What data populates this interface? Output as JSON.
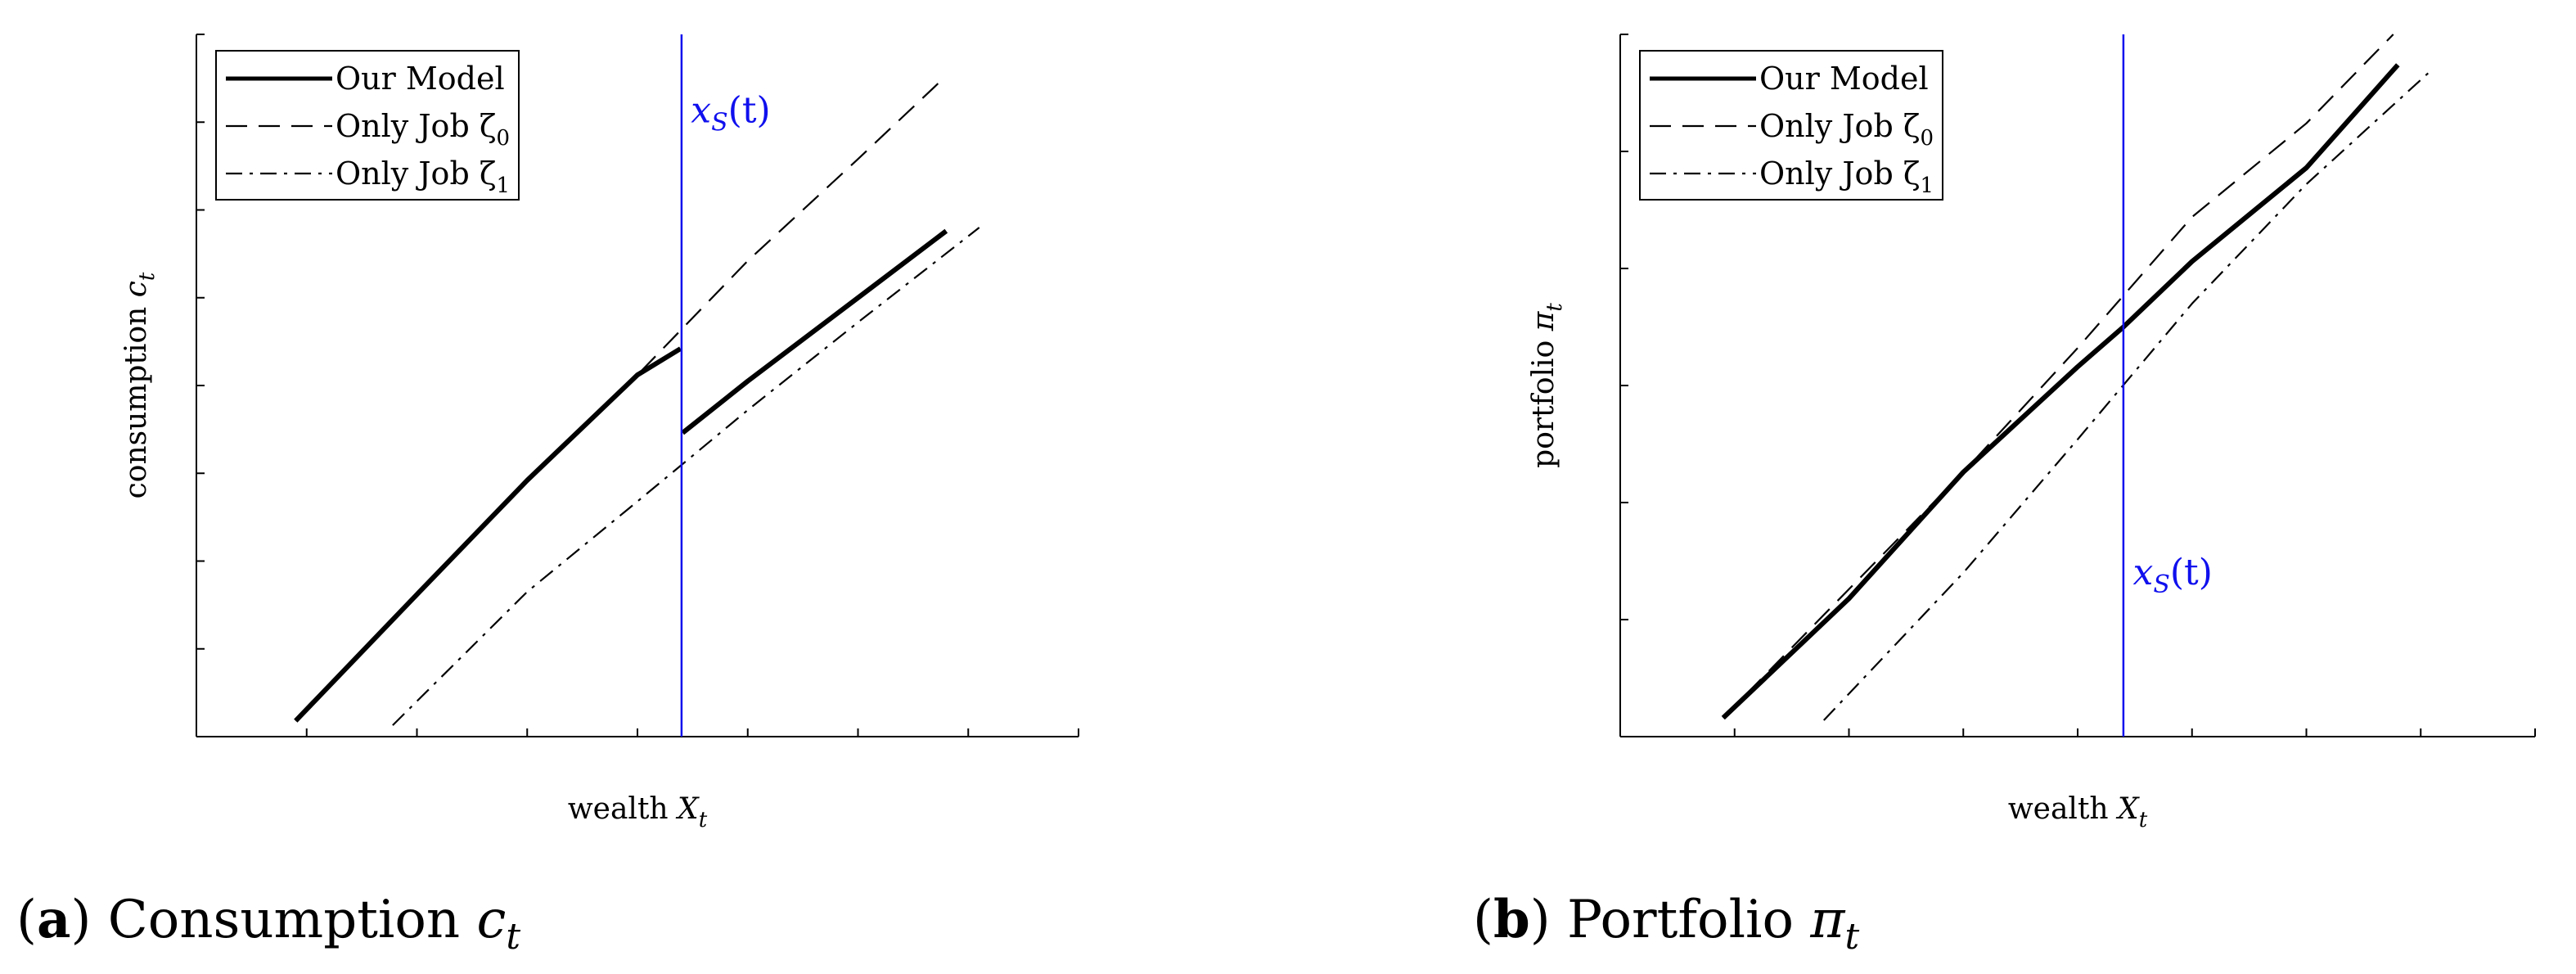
{
  "colors": {
    "background": "#ffffff",
    "axis": "#000000",
    "series": "#000000",
    "threshold": "#1010ee"
  },
  "captions": [
    {
      "letter": "a",
      "text": " Consumption ",
      "symbol": "c",
      "sub": "t"
    },
    {
      "letter": "b",
      "text": " Portfolio ",
      "symbol": "π",
      "sub": "t"
    }
  ],
  "chart_data": [
    {
      "type": "line",
      "xlabel": {
        "text": "wealth ",
        "symbol": "X",
        "sub": "t"
      },
      "ylabel": {
        "text": "consumption ",
        "symbol": "c",
        "sub": "t"
      },
      "xlim": [
        -150,
        250
      ],
      "ylim": [
        0,
        8
      ],
      "xticks": [
        -150,
        -100,
        -50,
        0,
        50,
        100,
        150,
        200,
        250
      ],
      "yticks": [
        0,
        1,
        2,
        3,
        4,
        5,
        6,
        7,
        8
      ],
      "grid": false,
      "legend_position": "top-left",
      "series": [
        {
          "name": "Our Model",
          "style": "solid",
          "segments": [
            [
              [
                -105,
                0.18
              ],
              [
                -50,
                1.62
              ],
              [
                0,
                2.92
              ],
              [
                50,
                4.12
              ],
              [
                69.5,
                4.42
              ]
            ],
            [
              [
                70.5,
                3.46
              ],
              [
                100,
                4.05
              ],
              [
                150,
                5.0
              ],
              [
                190,
                5.76
              ]
            ]
          ]
        },
        {
          "name": "Only Job ζ",
          "name_sub": "0",
          "style": "dashed",
          "segments": [
            [
              [
                -105,
                0.18
              ],
              [
                0,
                2.92
              ],
              [
                50,
                4.12
              ],
              [
                100,
                5.42
              ],
              [
                150,
                6.58
              ],
              [
                188,
                7.48
              ]
            ]
          ]
        },
        {
          "name": "Only Job ζ",
          "name_sub": "1",
          "style": "dashdot",
          "segments": [
            [
              [
                -61,
                0.13
              ],
              [
                0,
                1.65
              ],
              [
                50,
                2.68
              ],
              [
                100,
                3.72
              ],
              [
                150,
                4.72
              ],
              [
                205,
                5.8
              ]
            ]
          ]
        }
      ],
      "threshold": {
        "x": 70,
        "label": "x",
        "label_sub": "S",
        "label_arg": "(t)",
        "label_at": [
          72,
          7.0
        ]
      }
    },
    {
      "type": "line",
      "xlabel": {
        "text": "wealth ",
        "symbol": "X",
        "sub": "t"
      },
      "ylabel": {
        "text": "portfolio ",
        "symbol": "π",
        "sub": "t"
      },
      "xlim": [
        -150,
        250
      ],
      "ylim": [
        0,
        300
      ],
      "xticks": [
        -150,
        -100,
        -50,
        0,
        50,
        100,
        150,
        200,
        250
      ],
      "yticks": [
        0,
        50,
        100,
        150,
        200,
        250,
        300
      ],
      "grid": false,
      "legend_position": "top-left",
      "series": [
        {
          "name": "Our Model",
          "style": "solid",
          "segments": [
            [
              [
                -105,
                8
              ],
              [
                -50,
                59
              ],
              [
                0,
                113
              ],
              [
                50,
                158
              ],
              [
                70,
                175
              ],
              [
                100,
                203
              ],
              [
                150,
                243
              ],
              [
                190,
                287
              ]
            ]
          ]
        },
        {
          "name": "Only Job ζ",
          "name_sub": "0",
          "style": "dashed",
          "segments": [
            [
              [
                -105,
                8
              ],
              [
                0,
                113
              ],
              [
                50,
                166
              ],
              [
                100,
                222
              ],
              [
                150,
                262
              ],
              [
                188,
                300
              ]
            ]
          ]
        },
        {
          "name": "Only Job ζ",
          "name_sub": "1",
          "style": "dashdot",
          "segments": [
            [
              [
                -61,
                7
              ],
              [
                0,
                70
              ],
              [
                50,
                127
              ],
              [
                100,
                185
              ],
              [
                150,
                236
              ],
              [
                205,
                285
              ]
            ]
          ]
        }
      ],
      "threshold": {
        "x": 70,
        "label": "x",
        "label_sub": "S",
        "label_arg": "(t)",
        "label_at": [
          72,
          65
        ]
      }
    }
  ]
}
